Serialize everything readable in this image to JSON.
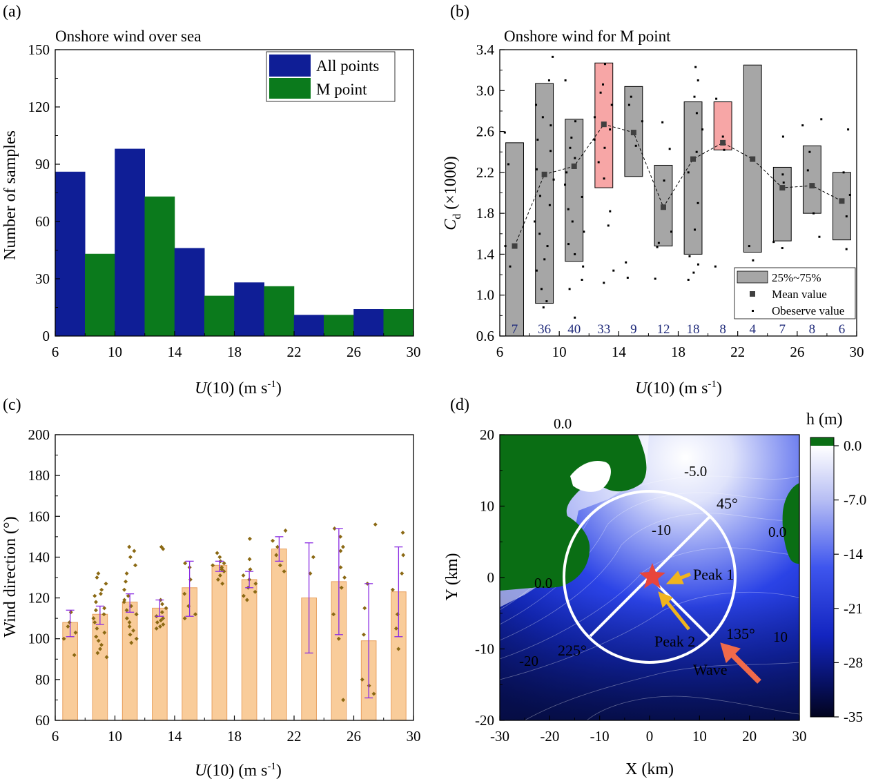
{
  "chart_data": [
    {
      "panel": "(a)",
      "type": "bar",
      "title": "Onshore wind over sea",
      "xlabel_main": "U",
      "xlabel_rest": "(10) (m s",
      "xlabel_sup": "-1",
      "xlabel_end": ")",
      "ylabel": "Number of samples",
      "xlim": [
        6,
        30
      ],
      "ylim": [
        0,
        150
      ],
      "xticks": [
        "6",
        "10",
        "14",
        "18",
        "22",
        "26",
        "30"
      ],
      "yticks": [
        "0",
        "30",
        "60",
        "90",
        "120",
        "150"
      ],
      "legend_position": "top-right",
      "categories": [
        8,
        12,
        16,
        20,
        24,
        28
      ],
      "series": [
        {
          "name": "All points",
          "color": "#0f1e96",
          "values": [
            86,
            98,
            46,
            28,
            11,
            14
          ]
        },
        {
          "name": "M point",
          "color": "#0b7a1c",
          "values": [
            43,
            73,
            21,
            26,
            11,
            14
          ]
        }
      ]
    },
    {
      "panel": "(b)",
      "type": "box",
      "title": "Onshore wind for M point",
      "xlabel_main": "U",
      "xlabel_rest": "(10) (m s",
      "xlabel_sup": "-1",
      "xlabel_end": ")",
      "ylabel_main": "C",
      "ylabel_sub": "d",
      "ylabel_rest": " (×1000)",
      "xlim": [
        6,
        30
      ],
      "ylim": [
        0.6,
        3.4
      ],
      "xticks": [
        "6",
        "10",
        "14",
        "18",
        "22",
        "26",
        "30"
      ],
      "yticks": [
        "0.6",
        "1.0",
        "1.4",
        "1.8",
        "2.2",
        "2.6",
        "3.0",
        "3.4"
      ],
      "legend_position": "bottom-right",
      "legend": [
        "25%~75%",
        "Mean value",
        "Obeserve value"
      ],
      "box_color": "#a6a6a6",
      "highlight_color": "#f7a6a6",
      "groups": [
        {
          "x": 7,
          "q1": 0.6,
          "q3": 2.49,
          "mean": 1.48,
          "count": "7",
          "highlight": false,
          "obs": [
            2.59,
            2.28,
            1.48,
            1.28
          ]
        },
        {
          "x": 9,
          "q1": 0.92,
          "q3": 3.07,
          "mean": 2.18,
          "count": "36",
          "highlight": false,
          "obs": [
            3.33,
            3.1,
            2.86,
            2.74,
            2.66,
            2.52,
            2.41,
            2.23,
            2.13,
            1.97,
            1.88,
            1.72,
            1.6,
            1.48,
            1.35,
            1.24,
            1.06,
            0.94,
            0.88
          ]
        },
        {
          "x": 11,
          "q1": 1.33,
          "q3": 2.72,
          "mean": 2.26,
          "count": "40",
          "highlight": false,
          "obs": [
            3.1,
            2.7,
            2.54,
            2.44,
            2.34,
            2.2,
            2.08,
            1.96,
            1.84,
            1.72,
            1.62,
            1.5,
            1.4,
            1.28,
            1.15,
            1.06,
            0.78
          ]
        },
        {
          "x": 13,
          "q1": 2.05,
          "q3": 3.27,
          "mean": 2.67,
          "count": "33",
          "highlight": true,
          "obs": [
            3.26,
            3.06,
            2.98,
            2.86,
            2.74,
            2.62,
            2.52,
            2.44,
            2.3,
            2.14,
            1.82,
            1.68,
            1.24,
            1.12
          ]
        },
        {
          "x": 15,
          "q1": 2.16,
          "q3": 3.04,
          "mean": 2.59,
          "count": "9",
          "highlight": false,
          "obs": [
            2.94,
            2.86,
            2.7,
            2.46,
            1.32,
            1.17
          ]
        },
        {
          "x": 17,
          "q1": 1.48,
          "q3": 2.27,
          "mean": 1.86,
          "count": "12",
          "highlight": false,
          "obs": [
            2.69,
            2.43,
            2.12,
            1.62,
            1.51,
            1.47,
            1.16
          ]
        },
        {
          "x": 19,
          "q1": 1.4,
          "q3": 2.89,
          "mean": 2.33,
          "count": "18",
          "highlight": false,
          "obs": [
            3.23,
            3.1,
            2.94,
            2.78,
            2.62,
            2.4,
            2.2,
            1.9,
            1.64,
            1.38,
            1.3,
            1.22,
            1.15
          ]
        },
        {
          "x": 21,
          "q1": 2.42,
          "q3": 2.89,
          "mean": 2.49,
          "count": "8",
          "highlight": true,
          "obs": [
            2.92,
            2.55,
            2.42,
            1.28
          ]
        },
        {
          "x": 23,
          "q1": 1.42,
          "q3": 3.25,
          "mean": 2.33,
          "count": "4",
          "highlight": false,
          "obs": [
            1.48,
            1.34
          ]
        },
        {
          "x": 25,
          "q1": 1.53,
          "q3": 2.25,
          "mean": 2.05,
          "count": "7",
          "highlight": false,
          "obs": [
            2.55,
            2.18,
            2.1,
            1.52,
            1.46
          ]
        },
        {
          "x": 27,
          "q1": 1.8,
          "q3": 2.46,
          "mean": 2.07,
          "count": "8",
          "highlight": false,
          "obs": [
            2.72,
            2.66,
            2.4,
            2.22,
            1.8,
            1.57
          ]
        },
        {
          "x": 29,
          "q1": 1.54,
          "q3": 2.2,
          "mean": 1.92,
          "count": "6",
          "highlight": false,
          "obs": [
            2.62,
            2.2,
            1.98,
            1.77,
            1.45
          ]
        }
      ]
    },
    {
      "panel": "(c)",
      "type": "bar",
      "xlabel_main": "U",
      "xlabel_rest": "(10) (m s",
      "xlabel_sup": "-1",
      "xlabel_end": ")",
      "ylabel": "Wind direction (°)",
      "xlim": [
        6,
        30
      ],
      "ylim": [
        60,
        200
      ],
      "xticks": [
        "6",
        "10",
        "14",
        "18",
        "22",
        "26",
        "30"
      ],
      "yticks": [
        "60",
        "80",
        "100",
        "120",
        "140",
        "160",
        "180",
        "200"
      ],
      "bar_color": "#f9cc9a",
      "bar_edge": "#e8a060",
      "error_color": "#8a2be2",
      "point_color": "#8b6914",
      "categories": [
        7,
        9,
        11,
        13,
        15,
        17,
        19,
        21,
        23,
        25,
        27,
        29
      ],
      "values": [
        108,
        112,
        118,
        115,
        125,
        136,
        129,
        144,
        120,
        128,
        99,
        123
      ],
      "err_low": [
        101,
        107,
        113,
        111,
        111,
        133,
        125,
        138,
        93,
        102,
        71,
        101
      ],
      "err_high": [
        114,
        116,
        122,
        119,
        138,
        138,
        133,
        150,
        147,
        154,
        127,
        145
      ],
      "obs": [
        [
          113,
          108,
          106,
          103,
          100,
          92
        ],
        [
          132,
          130,
          127,
          124,
          121,
          118,
          115,
          112,
          110,
          108,
          105,
          103,
          101,
          99,
          97,
          95,
          93,
          91,
          122,
          114
        ],
        [
          145,
          143,
          140,
          136,
          132,
          128,
          124,
          121,
          118,
          116,
          114,
          112,
          110,
          108,
          106,
          104,
          102,
          100,
          98,
          119
        ],
        [
          145,
          144,
          119,
          117,
          115,
          113,
          111,
          110,
          109,
          108,
          107,
          106,
          105
        ],
        [
          137,
          135,
          129,
          122,
          116,
          112,
          110
        ],
        [
          142,
          140,
          138,
          137,
          136,
          135,
          134,
          133,
          131,
          129,
          127
        ],
        [
          149,
          139,
          134,
          131,
          129,
          127,
          125,
          123,
          121,
          119
        ],
        [
          153,
          148,
          145,
          141,
          136,
          133
        ],
        [
          140,
          132
        ],
        [
          154,
          150,
          145,
          143,
          135,
          130,
          125,
          112,
          100,
          70
        ],
        [
          156,
          127,
          115,
          102,
          80,
          77,
          73
        ],
        [
          152,
          141,
          132,
          124,
          112,
          105,
          95
        ]
      ]
    },
    {
      "panel": "(d)",
      "type": "heatmap",
      "xlabel": "X (km)",
      "ylabel": "Y (km)",
      "colorbar_title": "h (m)",
      "xlim": [
        -30,
        30
      ],
      "ylim": [
        -20,
        20
      ],
      "xticks": [
        "-30",
        "-20",
        "-10",
        "0",
        "10",
        "20",
        "30"
      ],
      "yticks": [
        "-20",
        "-10",
        "0",
        "10",
        "20"
      ],
      "colorbar_ticks": [
        "0.0",
        "-7.0",
        "-14",
        "-21",
        "-28",
        "-35"
      ],
      "contour_labels": [
        "0.0",
        "-5.0",
        "-10",
        "0.0",
        "0.0",
        "-20",
        "10"
      ],
      "angle_labels": [
        "45°",
        "135°",
        "225°"
      ],
      "arrow_labels": [
        "Peak 1",
        "Peak 2",
        "Wave"
      ],
      "land_color": "#0a6e14",
      "marker_color": "#e8453c",
      "arrow_color": "#f0b41e",
      "wave_arrow_color": "#f06a4a"
    }
  ]
}
